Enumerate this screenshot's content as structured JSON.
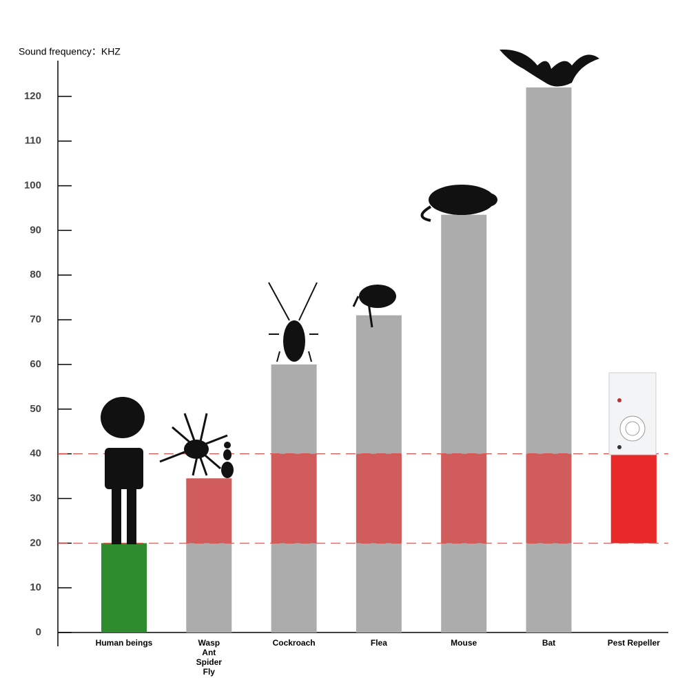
{
  "chart_data": {
    "type": "bar",
    "y_axis_label": "Sound frequency：KHZ",
    "categories": [
      "Human beings",
      "Wasp\nAnt\nSpider\nFly",
      "Cockroach",
      "Flea",
      "Mouse",
      "Bat",
      "Pest Repeller"
    ],
    "bases": [
      0,
      0,
      0,
      0,
      0,
      0,
      20
    ],
    "values": [
      20,
      34.5,
      60,
      71,
      93.5,
      122,
      40
    ],
    "colors": [
      "#2e8b2e",
      "#acacac",
      "#acacac",
      "#acacac",
      "#acacac",
      "#acacac",
      "#ff0000"
    ],
    "band": [
      20,
      40
    ],
    "band_color": "#e03a3a",
    "ylim": [
      0,
      128
    ],
    "yticks": [
      0,
      10,
      20,
      30,
      40,
      50,
      60,
      70,
      80,
      90,
      100,
      110,
      120
    ]
  }
}
